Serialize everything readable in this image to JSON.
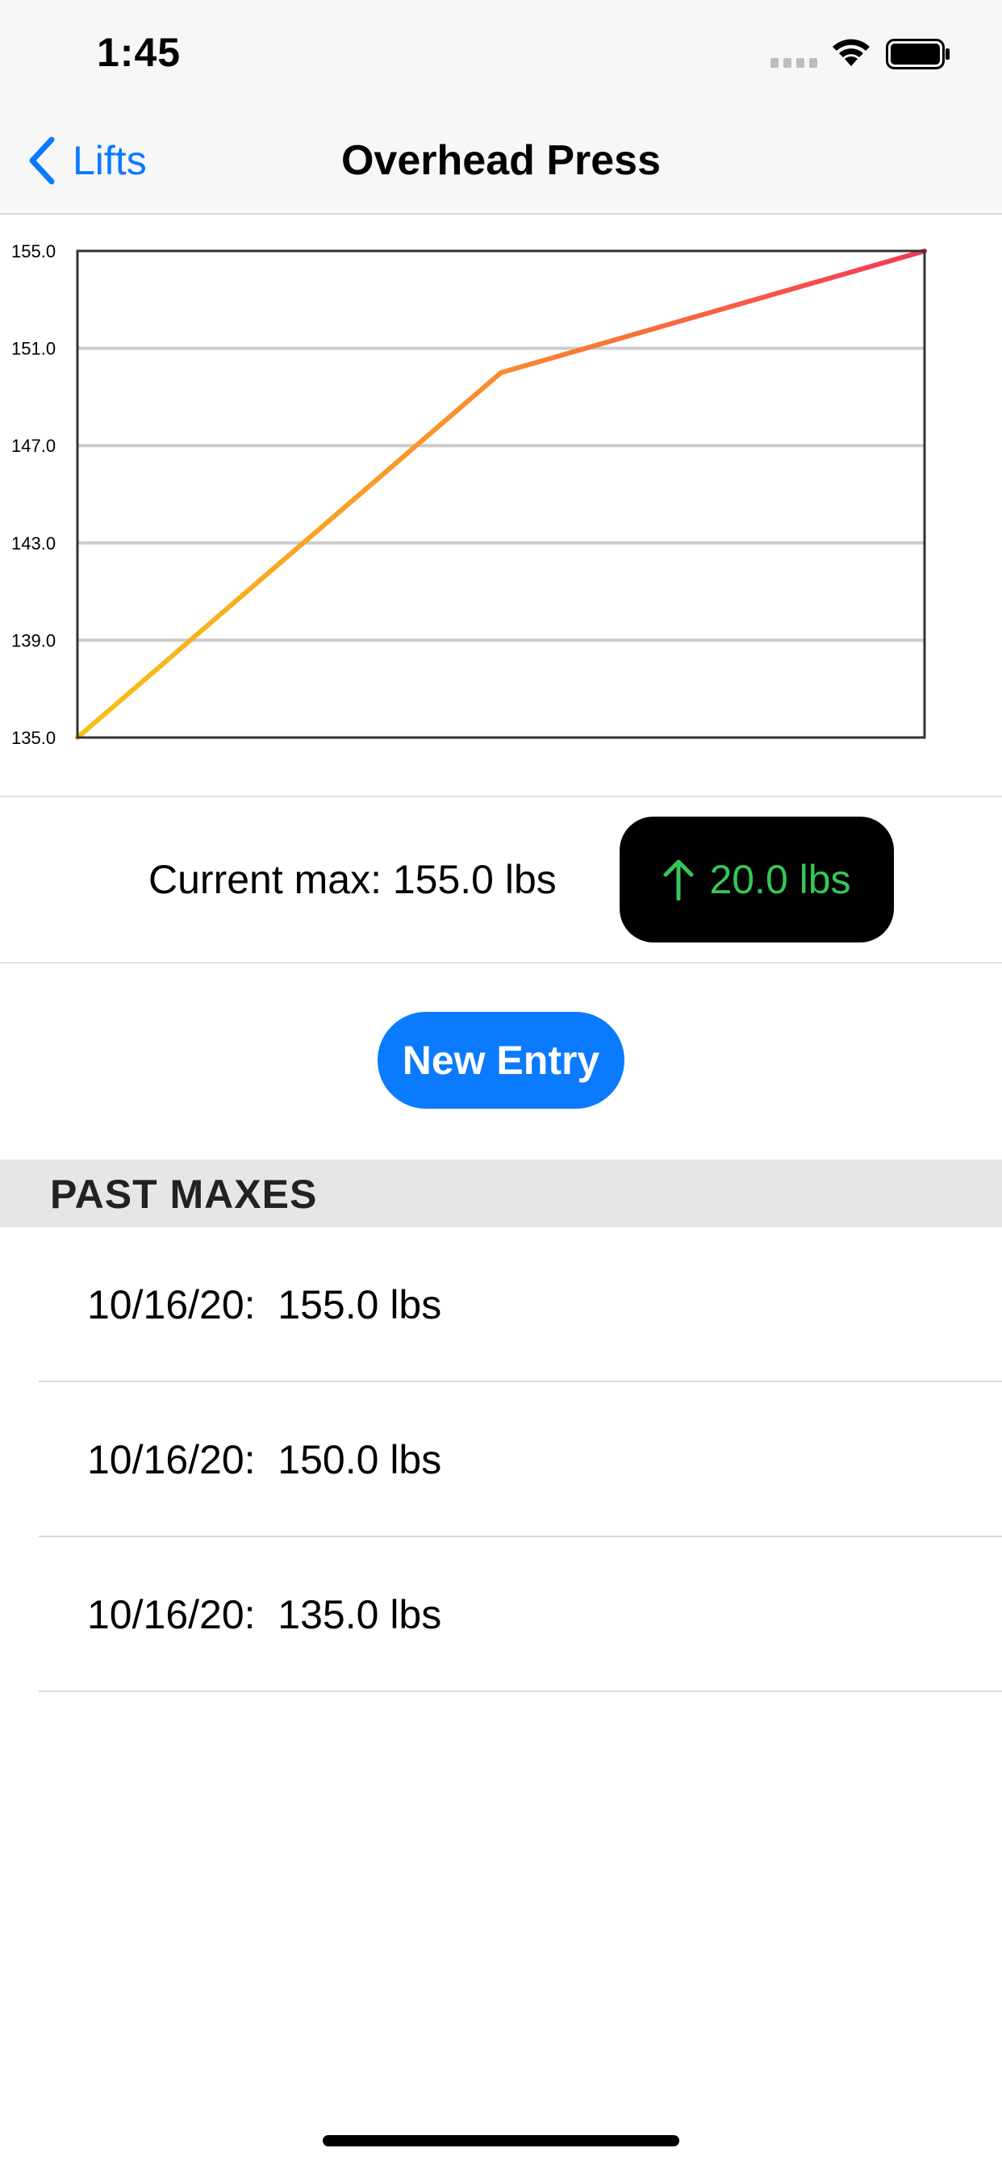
{
  "status_bar": {
    "time": "1:45"
  },
  "nav": {
    "back_label": "Lifts",
    "title": "Overhead Press"
  },
  "chart_data": {
    "type": "line",
    "x": [
      0,
      1,
      2
    ],
    "y": [
      135.0,
      150.0,
      155.0
    ],
    "ylim": [
      135.0,
      155.0
    ],
    "y_ticks": [
      "155.0",
      "151.0",
      "147.0",
      "143.0",
      "139.0",
      "135.0"
    ],
    "grid": true,
    "gradient_colors": [
      "#f9c116",
      "#fb8a2c",
      "#f5365a"
    ]
  },
  "summary": {
    "current_max": "Current max: 155.0 lbs",
    "delta": "20.0 lbs",
    "delta_color": "#34c759"
  },
  "new_entry_label": "New Entry",
  "past_maxes": {
    "header": "PAST MAXES",
    "items": [
      {
        "label": "10/16/20:  155.0 lbs"
      },
      {
        "label": "10/16/20:  150.0 lbs"
      },
      {
        "label": "10/16/20:  135.0 lbs"
      }
    ]
  },
  "colors": {
    "accent": "#0a7aff"
  }
}
